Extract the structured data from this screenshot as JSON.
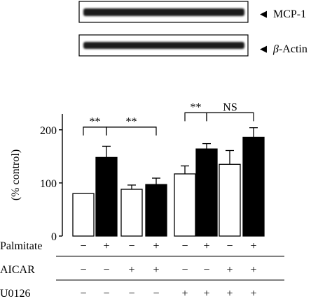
{
  "blots": [
    {
      "label": "MCP-1",
      "marker": "◀"
    },
    {
      "label_greek": "β",
      "label_rest": "-Actin",
      "marker": "◀"
    }
  ],
  "chart_data": {
    "type": "bar",
    "title": "",
    "xlabel": "",
    "ylabel": "(% control)",
    "ylim": [
      0,
      230
    ],
    "yticks": [
      0,
      100,
      200
    ],
    "grid": false,
    "legend": "none",
    "colors": {
      "minus_palmitate": "#ffffff",
      "plus_palmitate": "#000000",
      "edge": "#000000"
    },
    "groups": [
      {
        "palmitate": "−",
        "aicar": "−",
        "u0126": "−",
        "value": 80,
        "error": 0
      },
      {
        "palmitate": "+",
        "aicar": "−",
        "u0126": "−",
        "value": 148,
        "error": 21
      },
      {
        "palmitate": "−",
        "aicar": "+",
        "u0126": "−",
        "value": 88,
        "error": 8
      },
      {
        "palmitate": "+",
        "aicar": "+",
        "u0126": "−",
        "value": 97,
        "error": 12
      },
      {
        "palmitate": "−",
        "aicar": "−",
        "u0126": "+",
        "value": 117,
        "error": 15
      },
      {
        "palmitate": "+",
        "aicar": "−",
        "u0126": "+",
        "value": 164,
        "error": 10
      },
      {
        "palmitate": "−",
        "aicar": "+",
        "u0126": "+",
        "value": 135,
        "error": 26
      },
      {
        "palmitate": "+",
        "aicar": "+",
        "u0126": "+",
        "value": 186,
        "error": 18
      }
    ],
    "annotations": [
      {
        "from": 0,
        "to": 1,
        "text": "**",
        "level": 205
      },
      {
        "from": 1,
        "to": 3,
        "text": "**",
        "level": 205
      },
      {
        "from": 4,
        "to": 5,
        "text": "**",
        "level": 232
      },
      {
        "from": 5,
        "to": 7,
        "text": "NS",
        "level": 232
      }
    ],
    "row_labels": [
      "Palmitate",
      "AICAR",
      "U0126"
    ]
  }
}
